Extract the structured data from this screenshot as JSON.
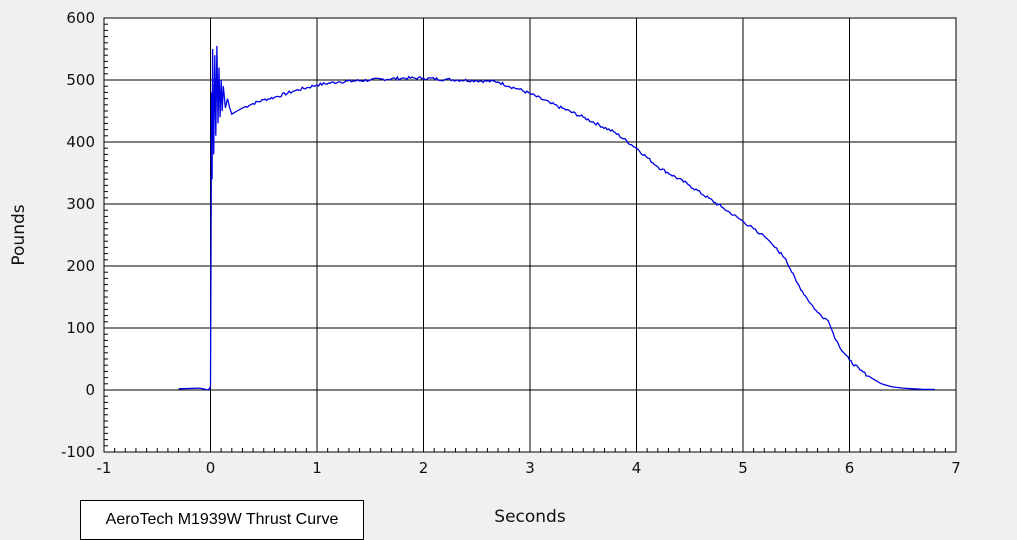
{
  "caption": "AeroTech M1939W Thrust Curve",
  "chart_data": {
    "type": "line",
    "title": "",
    "xlabel": "Seconds",
    "ylabel": "Pounds",
    "xlim": [
      -1,
      7
    ],
    "ylim": [
      -100,
      600
    ],
    "x_ticks": [
      "-1",
      "0",
      "1",
      "2",
      "3",
      "4",
      "5",
      "6",
      "7"
    ],
    "y_ticks": [
      "600",
      "500",
      "400",
      "300",
      "200",
      "100",
      "0",
      "-100"
    ],
    "grid": true,
    "line_color": "#0000e6",
    "series": [
      {
        "x": [
          -0.3,
          -0.1,
          -0.02,
          0.0,
          0.005,
          0.01,
          0.015,
          0.02,
          0.03,
          0.04,
          0.05,
          0.06,
          0.07,
          0.08,
          0.09,
          0.1,
          0.11,
          0.12,
          0.14,
          0.16,
          0.18,
          0.2,
          0.25,
          0.3,
          0.4,
          0.5,
          0.6,
          0.8,
          1.0,
          1.2,
          1.5,
          1.8,
          2.0,
          2.2,
          2.5,
          2.7,
          2.8,
          2.9,
          3.0,
          3.2,
          3.5,
          3.8,
          4.0,
          4.2,
          4.5,
          4.8,
          5.0,
          5.1,
          5.15,
          5.18,
          5.2,
          5.25,
          5.3,
          5.4,
          5.5,
          5.6,
          5.7,
          5.8,
          5.85,
          5.9,
          6.0,
          6.1,
          6.2,
          6.3,
          6.4,
          6.5,
          6.6,
          6.7,
          6.8
        ],
        "y": [
          2,
          3,
          0,
          5,
          220,
          480,
          340,
          550,
          380,
          540,
          410,
          555,
          430,
          520,
          440,
          500,
          450,
          490,
          455,
          470,
          455,
          445,
          450,
          455,
          462,
          468,
          472,
          483,
          492,
          497,
          500,
          503,
          503,
          501,
          499,
          497,
          490,
          485,
          478,
          462,
          440,
          415,
          390,
          360,
          330,
          295,
          272,
          260,
          252,
          252,
          248,
          240,
          230,
          212,
          175,
          148,
          125,
          112,
          90,
          72,
          48,
          32,
          20,
          10,
          5,
          3,
          2,
          1,
          1
        ]
      }
    ]
  }
}
